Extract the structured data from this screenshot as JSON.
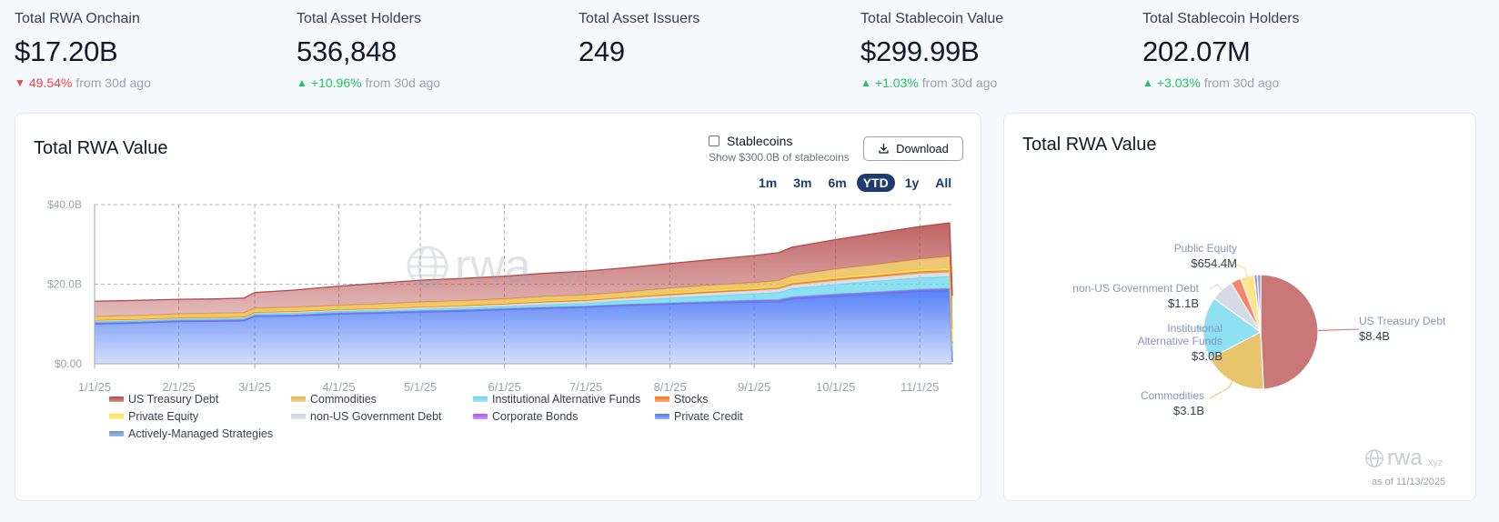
{
  "stats": [
    {
      "label": "Total RWA Onchain",
      "value": "$17.20B",
      "direction": "down",
      "pct": "49.54%",
      "suffix": "from 30d ago"
    },
    {
      "label": "Total Asset Holders",
      "value": "536,848",
      "direction": "up",
      "pct": "+10.96%",
      "suffix": "from 30d ago"
    },
    {
      "label": "Total Asset Issuers",
      "value": "249"
    },
    {
      "label": "Total Stablecoin Value",
      "value": "$299.99B",
      "direction": "up",
      "pct": "+1.03%",
      "suffix": "from 30d ago"
    },
    {
      "label": "Total Stablecoin Holders",
      "value": "202.07M",
      "direction": "up",
      "pct": "+3.03%",
      "suffix": "from 30d ago"
    }
  ],
  "left_card": {
    "title": "Total RWA Value",
    "stable_label": "Stablecoins",
    "stable_sub": "Show $300.0B of stablecoins",
    "stable_checked": false,
    "download_label": "Download",
    "ranges": [
      "1m",
      "3m",
      "6m",
      "YTD",
      "1y",
      "All"
    ],
    "active_range": "YTD",
    "watermark": "rwa",
    "watermark_suffix": ".xyz"
  },
  "right_card": {
    "title": "Total RWA Value",
    "watermark": "rwa",
    "watermark_suffix": ".xyz",
    "as_of": "as of 11/13/2025"
  },
  "colors": {
    "up": "#22c55e",
    "down": "#ef4444",
    "accent": "#1e3a6e"
  },
  "chart_data": [
    {
      "type": "area",
      "title": "Total RWA Value",
      "stacked": true,
      "grid": true,
      "ylim": [
        0,
        40
      ],
      "y_unit": "B",
      "y_ticks": [
        "$0.00",
        "$20.0B",
        "$40.0B"
      ],
      "x_ticks": [
        "1/1/25",
        "2/1/25",
        "3/1/25",
        "4/1/25",
        "5/1/25",
        "6/1/25",
        "7/1/25",
        "8/1/25",
        "9/1/25",
        "10/1/25",
        "11/1/25"
      ],
      "x": [
        "1/1/25",
        "1/15/25",
        "2/1/25",
        "2/15/25",
        "2/25/25",
        "3/1/25",
        "3/15/25",
        "4/1/25",
        "4/15/25",
        "5/1/25",
        "5/15/25",
        "6/1/25",
        "6/15/25",
        "7/1/25",
        "7/15/25",
        "8/1/25",
        "8/15/25",
        "9/1/25",
        "9/10/25",
        "9/15/25",
        "10/1/25",
        "10/15/25",
        "11/1/25",
        "11/12/25",
        "11/13/25"
      ],
      "series": [
        {
          "name": "Private Credit",
          "color": "#4f7cf6",
          "values": [
            10.0,
            10.2,
            10.6,
            10.7,
            10.8,
            11.9,
            12.0,
            12.5,
            12.7,
            13.0,
            13.2,
            13.6,
            13.9,
            14.2,
            14.6,
            15.0,
            15.3,
            15.5,
            15.6,
            16.3,
            17.0,
            17.5,
            18.2,
            18.4,
            0.5
          ]
        },
        {
          "name": "Corporate Bonds",
          "color": "#a855f7",
          "values": [
            0.2,
            0.2,
            0.2,
            0.2,
            0.2,
            0.2,
            0.2,
            0.2,
            0.2,
            0.2,
            0.2,
            0.2,
            0.2,
            0.2,
            0.2,
            0.2,
            0.2,
            0.3,
            0.3,
            0.3,
            0.3,
            0.3,
            0.3,
            0.3,
            0.0
          ]
        },
        {
          "name": "Actively-Managed Strategies",
          "color": "#6b93c9",
          "values": [
            0.1,
            0.1,
            0.1,
            0.1,
            0.1,
            0.1,
            0.1,
            0.1,
            0.1,
            0.1,
            0.1,
            0.1,
            0.1,
            0.1,
            0.1,
            0.1,
            0.1,
            0.2,
            0.2,
            0.2,
            0.2,
            0.2,
            0.2,
            0.2,
            0.0
          ]
        },
        {
          "name": "Institutional Alternative Funds",
          "color": "#67d5ec",
          "values": [
            0.3,
            0.3,
            0.3,
            0.3,
            0.3,
            0.4,
            0.4,
            0.4,
            0.4,
            0.4,
            0.5,
            0.5,
            0.6,
            0.7,
            0.9,
            1.2,
            1.4,
            1.6,
            1.8,
            2.1,
            2.4,
            2.7,
            2.9,
            3.0,
            3.0
          ]
        },
        {
          "name": "non-US Government Debt",
          "color": "#cbd5e1",
          "values": [
            0.3,
            0.3,
            0.3,
            0.3,
            0.3,
            0.3,
            0.4,
            0.4,
            0.4,
            0.5,
            0.5,
            0.5,
            0.6,
            0.6,
            0.7,
            0.7,
            0.8,
            0.8,
            0.9,
            0.9,
            1.0,
            1.0,
            1.1,
            1.1,
            1.1
          ]
        },
        {
          "name": "Stocks",
          "color": "#f97316",
          "values": [
            0.1,
            0.1,
            0.1,
            0.1,
            0.1,
            0.1,
            0.1,
            0.1,
            0.1,
            0.1,
            0.1,
            0.2,
            0.2,
            0.2,
            0.2,
            0.3,
            0.3,
            0.3,
            0.3,
            0.4,
            0.4,
            0.4,
            0.5,
            0.5,
            0.5
          ]
        },
        {
          "name": "Private Equity",
          "color": "#fde047",
          "values": [
            0.2,
            0.2,
            0.2,
            0.2,
            0.2,
            0.2,
            0.2,
            0.2,
            0.2,
            0.3,
            0.3,
            0.3,
            0.3,
            0.3,
            0.3,
            0.4,
            0.4,
            0.4,
            0.4,
            0.4,
            0.5,
            0.5,
            0.5,
            0.5,
            0.5
          ]
        },
        {
          "name": "Commodities",
          "color": "#e8b54a",
          "values": [
            0.7,
            0.7,
            0.7,
            0.8,
            0.8,
            0.8,
            0.8,
            0.8,
            0.9,
            0.9,
            0.9,
            0.9,
            1.0,
            1.0,
            1.0,
            1.1,
            1.2,
            1.3,
            1.4,
            1.6,
            2.0,
            2.3,
            2.6,
            3.0,
            3.1
          ]
        },
        {
          "name": "US Treasury Debt",
          "color": "#b54848",
          "values": [
            3.8,
            3.8,
            3.7,
            3.6,
            3.7,
            3.9,
            4.3,
            4.8,
            5.2,
            5.5,
            5.6,
            5.7,
            5.8,
            6.0,
            6.1,
            6.2,
            6.4,
            6.8,
            7.0,
            7.1,
            7.4,
            7.8,
            8.2,
            8.4,
            8.4
          ]
        }
      ],
      "legend_position": "bottom",
      "legend": [
        "US Treasury Debt",
        "Commodities",
        "Institutional Alternative Funds",
        "Stocks",
        "Private Equity",
        "non-US Government Debt",
        "Corporate Bonds",
        "Private Credit",
        "Actively-Managed Strategies"
      ]
    },
    {
      "type": "pie",
      "title": "Total RWA Value",
      "slices": [
        {
          "name": "US Treasury Debt",
          "value": 8.4,
          "value_label": "$8.4B",
          "color": "#c97777",
          "labeled": true
        },
        {
          "name": "Commodities",
          "value": 3.1,
          "value_label": "$3.1B",
          "color": "#e8c56d",
          "labeled": true
        },
        {
          "name": "Institutional Alternative Funds",
          "value": 3.0,
          "value_label": "$3.0B",
          "color": "#8fe0f0",
          "labeled": true
        },
        {
          "name": "non-US Government Debt",
          "value": 1.1,
          "value_label": "$1.1B",
          "color": "#d4dbe6",
          "labeled": true
        },
        {
          "name": "Stocks",
          "value": 0.5,
          "value_label": "",
          "color": "#f5866c",
          "labeled": false
        },
        {
          "name": "Public Equity",
          "value": 0.6544,
          "value_label": "$654.4M",
          "color": "#fde68a",
          "labeled": true
        },
        {
          "name": "Corporate Bonds",
          "value": 0.16,
          "value_label": "",
          "color": "#b48cf0",
          "labeled": false
        },
        {
          "name": "Actively-Managed Strategies",
          "value": 0.16,
          "value_label": "",
          "color": "#7aa3d8",
          "labeled": false
        }
      ]
    }
  ]
}
